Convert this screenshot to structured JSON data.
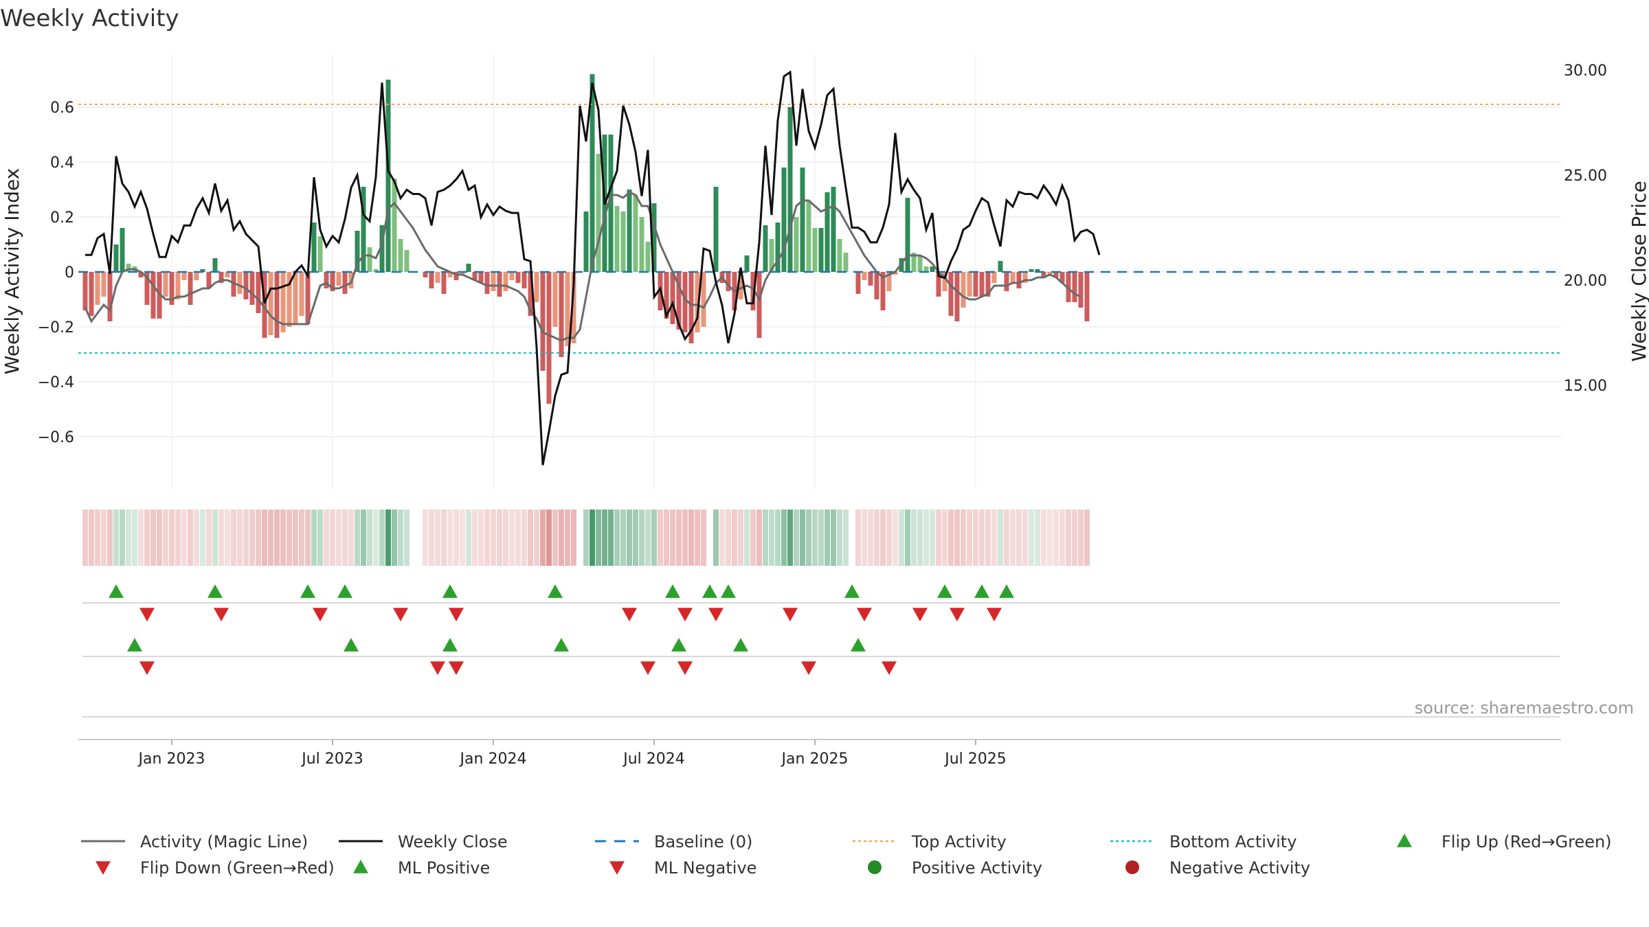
{
  "chart_data": {
    "type": "bar",
    "title": "Weekly Activity",
    "ylabel_left": "Weekly Activity Index",
    "ylabel_right": "Weekly Close Price",
    "left_ticks": [
      {
        "v": 0.6,
        "label": "0.6"
      },
      {
        "v": 0.4,
        "label": "0.4"
      },
      {
        "v": 0.2,
        "label": "0.2"
      },
      {
        "v": 0,
        "label": "0"
      },
      {
        "v": -0.2,
        "label": "−0.2"
      },
      {
        "v": -0.4,
        "label": "−0.4"
      },
      {
        "v": -0.6,
        "label": "−0.6"
      }
    ],
    "right_ticks": [
      {
        "v": 30,
        "label": "30.00"
      },
      {
        "v": 25,
        "label": "25.00"
      },
      {
        "v": 20,
        "label": "20.00"
      },
      {
        "v": 15,
        "label": "15.00"
      }
    ],
    "ylim_left": [
      -0.79,
      0.79
    ],
    "ylim_right": [
      10,
      31.5
    ],
    "x_ticks": [
      {
        "week": 14,
        "label": "Jan 2023"
      },
      {
        "week": 40,
        "label": "Jul 2023"
      },
      {
        "week": 66,
        "label": "Jan 2024"
      },
      {
        "week": 92,
        "label": "Jul 2024"
      },
      {
        "week": 118,
        "label": "Jan 2025"
      },
      {
        "week": 144,
        "label": "Jul 2025"
      }
    ],
    "top_activity": 0.61,
    "bottom_activity": -0.295,
    "baseline": 0,
    "activity": [
      -0.14,
      -0.16,
      -0.12,
      -0.09,
      -0.18,
      0.1,
      0.16,
      0.03,
      0.02,
      -0.02,
      -0.12,
      -0.17,
      -0.17,
      -0.09,
      -0.12,
      -0.1,
      -0.03,
      -0.12,
      -0.03,
      0.01,
      -0.06,
      0.05,
      -0.04,
      -0.02,
      -0.09,
      -0.08,
      -0.1,
      -0.12,
      -0.15,
      -0.24,
      -0.23,
      -0.24,
      -0.22,
      -0.2,
      -0.19,
      -0.16,
      -0.19,
      0.18,
      0.13,
      -0.06,
      -0.07,
      -0.05,
      -0.08,
      -0.06,
      0.15,
      0.31,
      0.09,
      0.01,
      0.17,
      0.7,
      0.34,
      0.12,
      0.08,
      0.0,
      0.0,
      -0.02,
      -0.06,
      -0.04,
      -0.08,
      -0.02,
      -0.03,
      -0.01,
      0.03,
      -0.03,
      -0.04,
      -0.08,
      -0.07,
      -0.09,
      -0.07,
      -0.03,
      -0.04,
      -0.06,
      -0.16,
      -0.11,
      -0.36,
      -0.48,
      -0.2,
      -0.31,
      -0.27,
      -0.26,
      0.0,
      0.22,
      0.72,
      0.43,
      0.5,
      0.5,
      0.24,
      0.22,
      0.3,
      0.28,
      0.2,
      0.11,
      0.25,
      -0.14,
      -0.17,
      -0.19,
      -0.21,
      -0.22,
      -0.26,
      -0.22,
      -0.2,
      0.0,
      0.31,
      -0.04,
      -0.07,
      -0.14,
      -0.1,
      0.06,
      -0.14,
      -0.24,
      0.17,
      0.12,
      0.18,
      0.38,
      0.6,
      0.2,
      0.38,
      0.26,
      0.16,
      0.16,
      0.29,
      0.31,
      0.12,
      0.07,
      0.0,
      -0.08,
      -0.03,
      -0.05,
      -0.1,
      -0.14,
      -0.07,
      -0.01,
      0.05,
      0.27,
      0.07,
      0.06,
      0.02,
      0.02,
      -0.09,
      -0.07,
      -0.16,
      -0.18,
      -0.13,
      -0.09,
      -0.09,
      -0.09,
      -0.09,
      -0.04,
      0.04,
      -0.07,
      -0.04,
      -0.06,
      -0.04,
      0.01,
      0.01,
      -0.02,
      -0.01,
      -0.02,
      -0.04,
      -0.11,
      -0.11,
      -0.13,
      -0.18
    ],
    "magic_line": [
      -0.13,
      -0.18,
      -0.15,
      -0.12,
      -0.14,
      -0.05,
      0.0,
      0.01,
      0.01,
      0.0,
      -0.02,
      -0.05,
      -0.08,
      -0.1,
      -0.1,
      -0.09,
      -0.09,
      -0.08,
      -0.07,
      -0.06,
      -0.06,
      -0.04,
      -0.03,
      -0.03,
      -0.04,
      -0.05,
      -0.06,
      -0.08,
      -0.1,
      -0.13,
      -0.16,
      -0.18,
      -0.19,
      -0.19,
      -0.19,
      -0.19,
      -0.19,
      -0.12,
      -0.05,
      -0.04,
      -0.06,
      -0.06,
      -0.05,
      -0.04,
      0.03,
      0.06,
      0.06,
      0.05,
      0.1,
      0.23,
      0.25,
      0.22,
      0.19,
      0.16,
      0.12,
      0.08,
      0.05,
      0.02,
      0.01,
      0.0,
      -0.01,
      -0.01,
      -0.02,
      -0.03,
      -0.04,
      -0.05,
      -0.05,
      -0.05,
      -0.05,
      -0.06,
      -0.07,
      -0.09,
      -0.14,
      -0.17,
      -0.22,
      -0.23,
      -0.24,
      -0.25,
      -0.24,
      -0.24,
      -0.21,
      -0.09,
      0.03,
      0.11,
      0.2,
      0.28,
      0.28,
      0.27,
      0.29,
      0.28,
      0.24,
      0.24,
      0.17,
      0.1,
      0.05,
      0.0,
      -0.05,
      -0.1,
      -0.12,
      -0.12,
      -0.13,
      -0.09,
      -0.04,
      -0.02,
      -0.05,
      -0.07,
      -0.06,
      -0.05,
      -0.06,
      -0.1,
      -0.03,
      0.01,
      0.04,
      0.08,
      0.16,
      0.24,
      0.26,
      0.26,
      0.24,
      0.22,
      0.23,
      0.24,
      0.22,
      0.18,
      0.14,
      0.1,
      0.06,
      0.03,
      0.0,
      -0.02,
      -0.01,
      0.0,
      0.03,
      0.06,
      0.06,
      0.06,
      0.05,
      0.03,
      0.0,
      -0.02,
      -0.05,
      -0.07,
      -0.09,
      -0.1,
      -0.1,
      -0.09,
      -0.08,
      -0.05,
      -0.05,
      -0.05,
      -0.04,
      -0.04,
      -0.03,
      -0.03,
      -0.02,
      -0.02,
      -0.01,
      -0.02,
      -0.04,
      -0.06,
      -0.08,
      -0.09
    ],
    "weekly_close": [
      21.2,
      21.2,
      22.0,
      22.2,
      20.3,
      25.9,
      24.6,
      24.2,
      23.5,
      24.2,
      23.4,
      22.2,
      21.1,
      21.1,
      22.1,
      21.8,
      22.6,
      22.6,
      23.4,
      23.9,
      23.2,
      24.6,
      23.3,
      23.8,
      22.4,
      22.8,
      22.2,
      21.9,
      21.6,
      18.9,
      19.6,
      19.6,
      19.7,
      19.8,
      20.4,
      20.7,
      20.2,
      24.9,
      22.4,
      21.6,
      22.1,
      21.8,
      22.9,
      24.4,
      25.0,
      23.1,
      22.8,
      24.9,
      29.4,
      25.2,
      24.7,
      23.9,
      24.3,
      24.1,
      24.1,
      23.9,
      22.6,
      24.2,
      24.3,
      24.5,
      24.8,
      25.2,
      24.3,
      24.5,
      23.0,
      23.6,
      23.1,
      23.5,
      23.3,
      23.2,
      23.2,
      21.0,
      20.9,
      16.8,
      11.2,
      12.8,
      14.5,
      15.5,
      15.6,
      19.8,
      28.3,
      26.6,
      29.4,
      28.1,
      23.6,
      24.4,
      25.2,
      28.3,
      27.4,
      26.1,
      24.0,
      26.2,
      19.2,
      19.6,
      18.3,
      18.9,
      17.9,
      17.2,
      17.6,
      18.2,
      21.5,
      21.4,
      19.9,
      18.8,
      17.0,
      18.4,
      20.6,
      18.9,
      18.9,
      21.8,
      26.4,
      23.1,
      27.6,
      29.7,
      29.9,
      26.4,
      29.1,
      27.1,
      26.3,
      27.4,
      28.8,
      29.1,
      26.4,
      24.4,
      22.5,
      22.5,
      22.3,
      21.8,
      21.8,
      22.5,
      23.6,
      27.0,
      24.2,
      24.8,
      24.3,
      23.9,
      22.4,
      23.2,
      20.2,
      20.1,
      20.9,
      21.5,
      22.4,
      22.6,
      23.3,
      23.9,
      23.7,
      22.6,
      21.6,
      23.8,
      23.5,
      24.2,
      24.1,
      24.1,
      23.9,
      24.5,
      24.1,
      23.6,
      24.5,
      23.8,
      21.9,
      22.3,
      22.4,
      22.2,
      21.2
    ],
    "flip_up_weeks": [
      5,
      21,
      36,
      42,
      59,
      76,
      95,
      101,
      104,
      124,
      139,
      145,
      149
    ],
    "flip_down_weeks": [
      10,
      22,
      38,
      51,
      60,
      88,
      97,
      102,
      114,
      126,
      135,
      141,
      147
    ],
    "ml_positive_weeks": [
      8,
      43,
      59,
      77,
      96,
      106,
      125
    ],
    "ml_negative_weeks": [
      10,
      57,
      60,
      91,
      97,
      117,
      130
    ],
    "legend": [
      {
        "key": "magic_line",
        "label": "Activity (Magic Line)",
        "symbol": "line",
        "color": "#6b6b6b"
      },
      {
        "key": "weekly_close",
        "label": "Weekly Close",
        "symbol": "line",
        "color": "#111111"
      },
      {
        "key": "baseline",
        "label": "Baseline (0)",
        "symbol": "dash",
        "color": "#1f77b4"
      },
      {
        "key": "top",
        "label": "Top Activity",
        "symbol": "dot",
        "color": "#f4a460"
      },
      {
        "key": "bottom",
        "label": "Bottom Activity",
        "symbol": "dot",
        "color": "#17becf"
      },
      {
        "key": "flip_up",
        "label": "Flip Up (Red→Green)",
        "symbol": "tri-up",
        "color": "#2ca02c"
      },
      {
        "key": "flip_down",
        "label": "Flip Down (Green→Red)",
        "symbol": "tri-down",
        "color": "#d62728"
      },
      {
        "key": "ml_pos",
        "label": "ML Positive",
        "symbol": "tri-up",
        "color": "#2ca02c"
      },
      {
        "key": "ml_neg",
        "label": "ML Negative",
        "symbol": "tri-down",
        "color": "#d62728"
      },
      {
        "key": "pos_act",
        "label": "Positive Activity",
        "symbol": "circle",
        "color": "#228b22"
      },
      {
        "key": "neg_act",
        "label": "Negative Activity",
        "symbol": "circle",
        "color": "#b22222"
      }
    ],
    "source": "source: sharemaestro.com",
    "colors": {
      "pos_strong": "#2e8b57",
      "pos_light": "#7fbf7f",
      "neg_strong": "#cd5c5c",
      "neg_light": "#e9967a",
      "magic_line": "#6b6b6b",
      "close": "#111111",
      "baseline": "#1f77b4",
      "top": "#f4a460",
      "bottom": "#17becf",
      "up_marker": "#2ca02c",
      "down_marker": "#d62728"
    }
  }
}
